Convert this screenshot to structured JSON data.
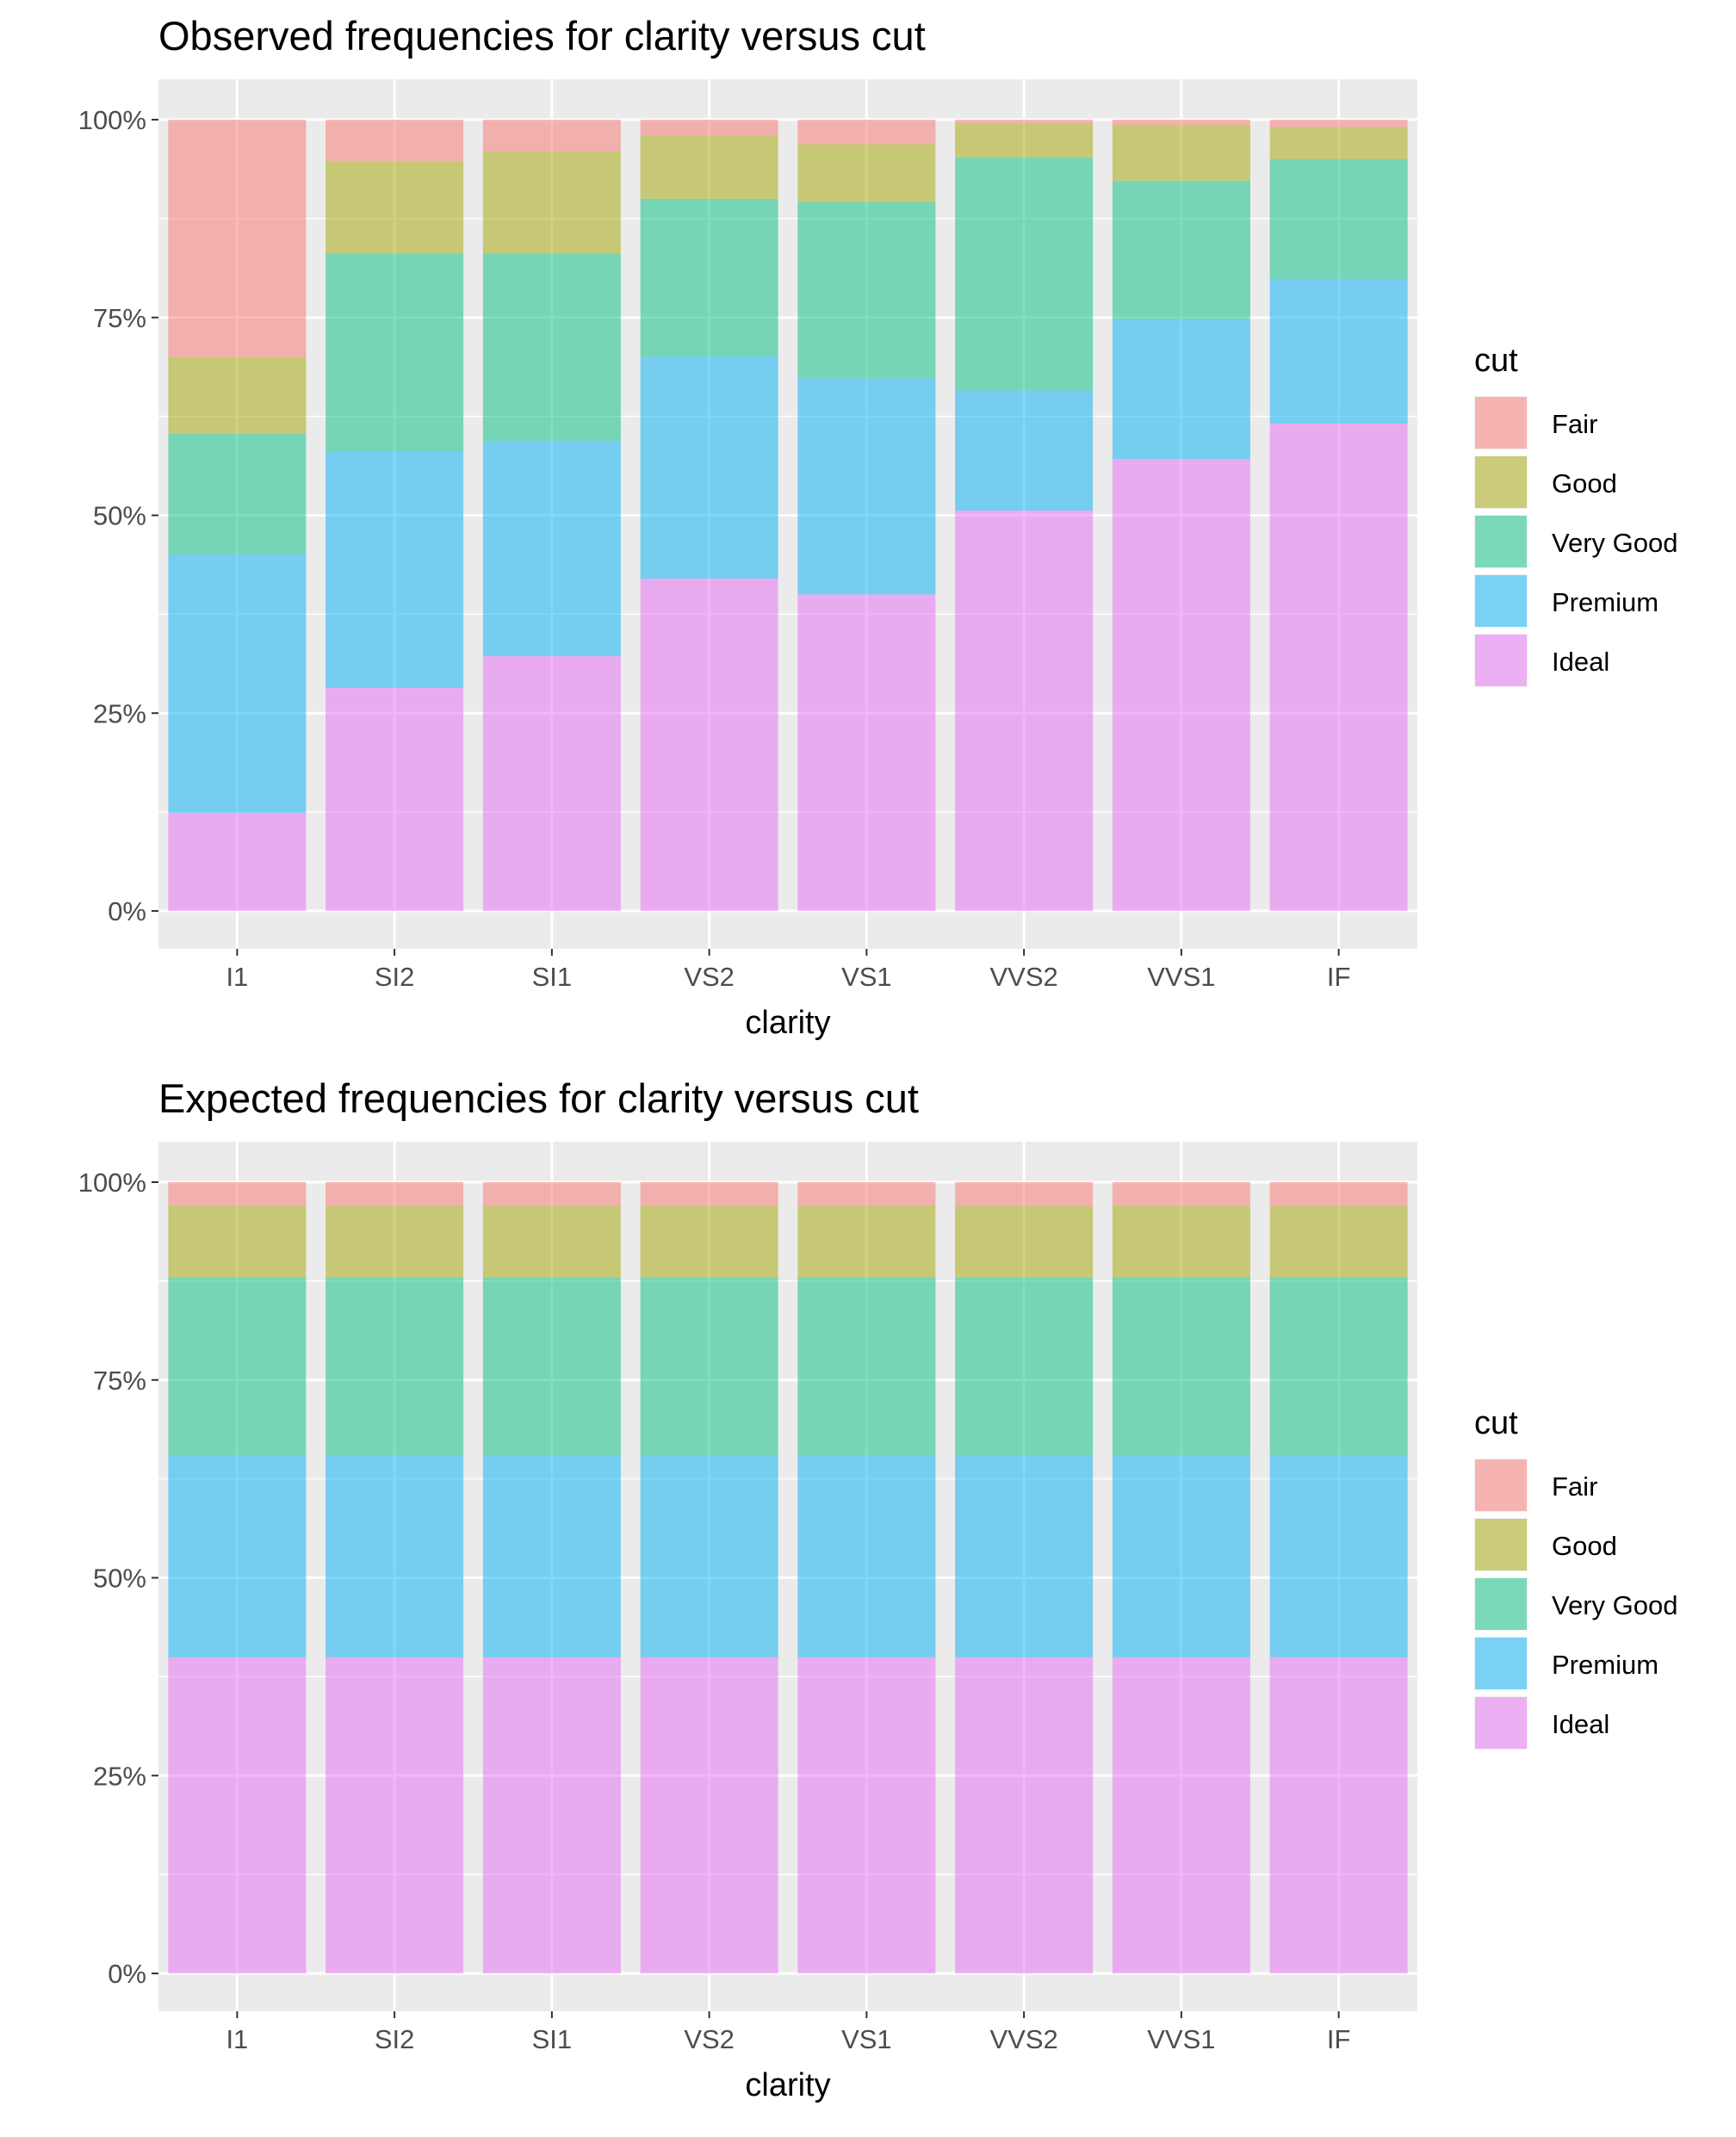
{
  "chart_data": [
    {
      "type": "bar",
      "stacked": true,
      "title": "Observed frequencies for clarity versus cut",
      "xlabel": "clarity",
      "ylabel": "",
      "ylim": [
        0,
        1
      ],
      "yticks": [
        "0%",
        "25%",
        "50%",
        "75%",
        "100%"
      ],
      "categories": [
        "I1",
        "SI2",
        "SI1",
        "VS2",
        "VS1",
        "VVS2",
        "VVS1",
        "IF"
      ],
      "legend": {
        "title": "cut",
        "position": "right"
      },
      "series": [
        {
          "name": "Ideal",
          "color": "#E76BF3",
          "values": [
            0.124,
            0.282,
            0.322,
            0.42,
            0.4,
            0.506,
            0.571,
            0.616
          ]
        },
        {
          "name": "Premium",
          "color": "#00B0F6",
          "values": [
            0.327,
            0.299,
            0.272,
            0.281,
            0.273,
            0.152,
            0.176,
            0.183
          ]
        },
        {
          "name": "Very Good",
          "color": "#00BF7D",
          "values": [
            0.152,
            0.25,
            0.237,
            0.199,
            0.223,
            0.294,
            0.176,
            0.151
          ]
        },
        {
          "name": "Good",
          "color": "#A3A500",
          "values": [
            0.097,
            0.117,
            0.129,
            0.08,
            0.073,
            0.043,
            0.07,
            0.04
          ]
        },
        {
          "name": "Fair",
          "color": "#F8766D",
          "values": [
            0.3,
            0.052,
            0.04,
            0.02,
            0.031,
            0.005,
            0.007,
            0.01
          ]
        }
      ]
    },
    {
      "type": "bar",
      "stacked": true,
      "title": "Expected frequencies for clarity versus cut",
      "xlabel": "clarity",
      "ylabel": "",
      "ylim": [
        0,
        1
      ],
      "yticks": [
        "0%",
        "25%",
        "50%",
        "75%",
        "100%"
      ],
      "categories": [
        "I1",
        "SI2",
        "SI1",
        "VS2",
        "VS1",
        "VVS2",
        "VVS1",
        "IF"
      ],
      "legend": {
        "title": "cut",
        "position": "right"
      },
      "series": [
        {
          "name": "Ideal",
          "color": "#E76BF3",
          "values": [
            0.3995,
            0.3995,
            0.3995,
            0.3995,
            0.3995,
            0.3995,
            0.3995,
            0.3995
          ]
        },
        {
          "name": "Premium",
          "color": "#00B0F6",
          "values": [
            0.2557,
            0.2557,
            0.2557,
            0.2557,
            0.2557,
            0.2557,
            0.2557,
            0.2557
          ]
        },
        {
          "name": "Very Good",
          "color": "#00BF7D",
          "values": [
            0.224,
            0.224,
            0.224,
            0.224,
            0.224,
            0.224,
            0.224,
            0.224
          ]
        },
        {
          "name": "Good",
          "color": "#A3A500",
          "values": [
            0.091,
            0.091,
            0.091,
            0.091,
            0.091,
            0.091,
            0.091,
            0.091
          ]
        },
        {
          "name": "Fair",
          "color": "#F8766D",
          "values": [
            0.0298,
            0.0298,
            0.0298,
            0.0298,
            0.0298,
            0.0298,
            0.0298,
            0.0298
          ]
        }
      ]
    }
  ],
  "style": {
    "panel_background": "#EBEBEB",
    "gridline": "#FFFFFF",
    "bar_opacity": 0.5
  }
}
